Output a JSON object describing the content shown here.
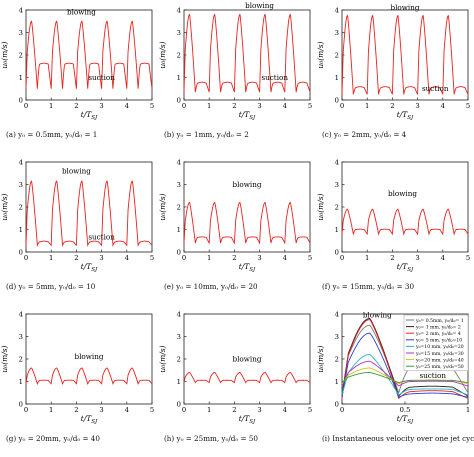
{
  "common": {
    "ylabel": "u₀(m/s)",
    "xlabel": "t/T",
    "xlabel_sub": "SJ"
  },
  "chart_data": [
    {
      "type": "line",
      "caption": "(a)  y₀ = 0.5mm, y₀/d₀ = 1",
      "xlabel": "t/T_SJ",
      "ylabel": "u₀(m/s)",
      "xlim": [
        0,
        5
      ],
      "ylim": [
        0,
        4
      ],
      "xticks": [
        0,
        1,
        2,
        3,
        4,
        5
      ],
      "yticks": [
        0,
        1,
        2,
        3,
        4
      ],
      "grid": false,
      "annotations": [
        {
          "text": "blowing",
          "x": 2.2,
          "y": 3.8
        },
        {
          "text": "suction",
          "x": 3.0,
          "y": 0.9
        }
      ],
      "series": [
        {
          "color": "#e8231f",
          "peak": 3.5,
          "trough": 0.5,
          "shoulder": 1.6
        }
      ]
    },
    {
      "type": "line",
      "caption": "(b)  y₀ = 1mm, y₀/d₀ = 2",
      "xlabel": "t/T_SJ",
      "ylabel": "u₀(m/s)",
      "xlim": [
        0,
        5
      ],
      "ylim": [
        0,
        4
      ],
      "xticks": [
        0,
        1,
        2,
        3,
        4,
        5
      ],
      "yticks": [
        0,
        1,
        2,
        3,
        4
      ],
      "grid": false,
      "annotations": [
        {
          "text": "blowing",
          "x": 3.0,
          "y": 4.1
        },
        {
          "text": "suction",
          "x": 3.6,
          "y": 0.9
        }
      ],
      "series": [
        {
          "color": "#e8231f",
          "peak": 3.8,
          "trough": 0.35,
          "shoulder": 0.75
        }
      ]
    },
    {
      "type": "line",
      "caption": "(c)  y₀ = 2mm, y₀/d₀ = 4",
      "xlabel": "t/T_SJ",
      "ylabel": "u₀(m/s)",
      "xlim": [
        0,
        5
      ],
      "ylim": [
        0,
        4
      ],
      "xticks": [
        0,
        1,
        2,
        3,
        4,
        5
      ],
      "yticks": [
        0,
        1,
        2,
        3,
        4
      ],
      "grid": false,
      "annotations": [
        {
          "text": "blowing",
          "x": 2.5,
          "y": 4.0
        },
        {
          "text": "suction",
          "x": 3.7,
          "y": 0.4
        }
      ],
      "series": [
        {
          "color": "#e8231f",
          "peak": 3.75,
          "trough": 0.25,
          "shoulder": 0.55
        }
      ]
    },
    {
      "type": "line",
      "caption": "(d)  y₀ = 5mm, y₀/d₀ = 10",
      "xlabel": "t/T_SJ",
      "ylabel": "u₀(m/s)",
      "xlim": [
        0,
        5
      ],
      "ylim": [
        0,
        4
      ],
      "xticks": [
        0,
        1,
        2,
        3,
        4,
        5
      ],
      "yticks": [
        0,
        1,
        2,
        3,
        4
      ],
      "grid": false,
      "annotations": [
        {
          "text": "blowing",
          "x": 2.0,
          "y": 3.5
        },
        {
          "text": "suction",
          "x": 3.0,
          "y": 0.55
        }
      ],
      "series": [
        {
          "color": "#e8231f",
          "peak": 3.15,
          "trough": 0.3,
          "shoulder": 0.45
        }
      ]
    },
    {
      "type": "line",
      "caption": "(e)  y₀ = 10mm, y₀/d₀ = 20",
      "xlabel": "t/T_SJ",
      "ylabel": "u₀(m/s)",
      "xlim": [
        0,
        5
      ],
      "ylim": [
        0,
        4
      ],
      "xticks": [
        0,
        1,
        2,
        3,
        4,
        5
      ],
      "yticks": [
        0,
        1,
        2,
        3,
        4
      ],
      "grid": false,
      "annotations": [
        {
          "text": "blowing",
          "x": 2.5,
          "y": 2.9
        }
      ],
      "series": [
        {
          "color": "#e8231f",
          "peak": 2.2,
          "trough": 0.4,
          "shoulder": 0.65
        }
      ]
    },
    {
      "type": "line",
      "caption": "(f)  y₀ = 15mm, y₀/d₀ = 30",
      "xlabel": "t/T_SJ",
      "ylabel": "u₀(m/s)",
      "xlim": [
        0,
        5
      ],
      "ylim": [
        0,
        4
      ],
      "xticks": [
        0,
        1,
        2,
        3,
        4,
        5
      ],
      "yticks": [
        0,
        1,
        2,
        3,
        4
      ],
      "grid": false,
      "annotations": [
        {
          "text": "blowing",
          "x": 2.4,
          "y": 2.5
        }
      ],
      "series": [
        {
          "color": "#e8231f",
          "peak": 1.9,
          "trough": 0.8,
          "shoulder": 1.0
        }
      ]
    },
    {
      "type": "line",
      "caption": "(g)  y₀ = 20mm, y₀/d₀ = 40",
      "xlabel": "t/T_SJ",
      "ylabel": "u₀(m/s)",
      "xlim": [
        0,
        5
      ],
      "ylim": [
        0,
        4
      ],
      "xticks": [
        0,
        1,
        2,
        3,
        4,
        5
      ],
      "yticks": [
        0,
        1,
        2,
        3,
        4
      ],
      "grid": false,
      "annotations": [
        {
          "text": "blowing",
          "x": 2.5,
          "y": 2.0
        }
      ],
      "series": [
        {
          "color": "#e8231f",
          "peak": 1.6,
          "trough": 0.9,
          "shoulder": 1.05
        }
      ]
    },
    {
      "type": "line",
      "caption": "(h)  y₀ = 25mm, y₀/d₀ = 50",
      "xlabel": "t/T_SJ",
      "ylabel": "u₀(m/s)",
      "xlim": [
        0,
        5
      ],
      "ylim": [
        0,
        4
      ],
      "xticks": [
        0,
        1,
        2,
        3,
        4,
        5
      ],
      "yticks": [
        0,
        1,
        2,
        3,
        4
      ],
      "grid": false,
      "annotations": [
        {
          "text": "blowing",
          "x": 2.5,
          "y": 1.9
        }
      ],
      "series": [
        {
          "color": "#e8231f",
          "peak": 1.4,
          "trough": 0.95,
          "shoulder": 1.05
        }
      ]
    },
    {
      "type": "line",
      "caption": "(i)  Instantaneous velocity over one jet cycle",
      "xlabel": "t/T_SJ",
      "ylabel": "u₀(m/s)",
      "xlim": [
        0,
        1
      ],
      "ylim": [
        0,
        4
      ],
      "xticks": [
        0,
        0.5,
        1
      ],
      "yticks": [
        0,
        1,
        2,
        3,
        4
      ],
      "grid": false,
      "legend": "top-right",
      "annotations": [
        {
          "text": "blowing",
          "x": 0.28,
          "y": 3.85
        },
        {
          "text": "suction",
          "x": 0.72,
          "y": 1.15
        }
      ],
      "series": [
        {
          "name": "y₀= 0.5mm, y₀/d₀= 1",
          "color": "#7a7a7a",
          "peak": 3.5,
          "trough": 0.5,
          "shoulder": 1.6
        },
        {
          "name": "y₀= 1 mm, y₀/d₀= 2",
          "color": "#222222",
          "peak": 3.8,
          "trough": 0.35,
          "shoulder": 0.75
        },
        {
          "name": "y₀= 2 mm, y₀/d₀= 4",
          "color": "#e8231f",
          "peak": 3.75,
          "trough": 0.25,
          "shoulder": 0.55
        },
        {
          "name": "y₀= 5 mm, y₀/d₀=10",
          "color": "#2b3fd6",
          "peak": 3.15,
          "trough": 0.3,
          "shoulder": 0.45
        },
        {
          "name": "y₀=10 mm, y₀/d₀=20",
          "color": "#26b6c6",
          "peak": 2.2,
          "trough": 0.4,
          "shoulder": 0.65
        },
        {
          "name": "y₀=15 mm, y₀/d₀=30",
          "color": "#b52fc0",
          "peak": 1.9,
          "trough": 0.8,
          "shoulder": 1.0
        },
        {
          "name": "y₀=20 mm, y₀/d₀=40",
          "color": "#d8c21a",
          "peak": 1.6,
          "trough": 0.9,
          "shoulder": 1.05
        },
        {
          "name": "y₀=25 mm, y₀/d₀=50",
          "color": "#3a9b3a",
          "peak": 1.4,
          "trough": 0.95,
          "shoulder": 1.05
        }
      ]
    }
  ]
}
